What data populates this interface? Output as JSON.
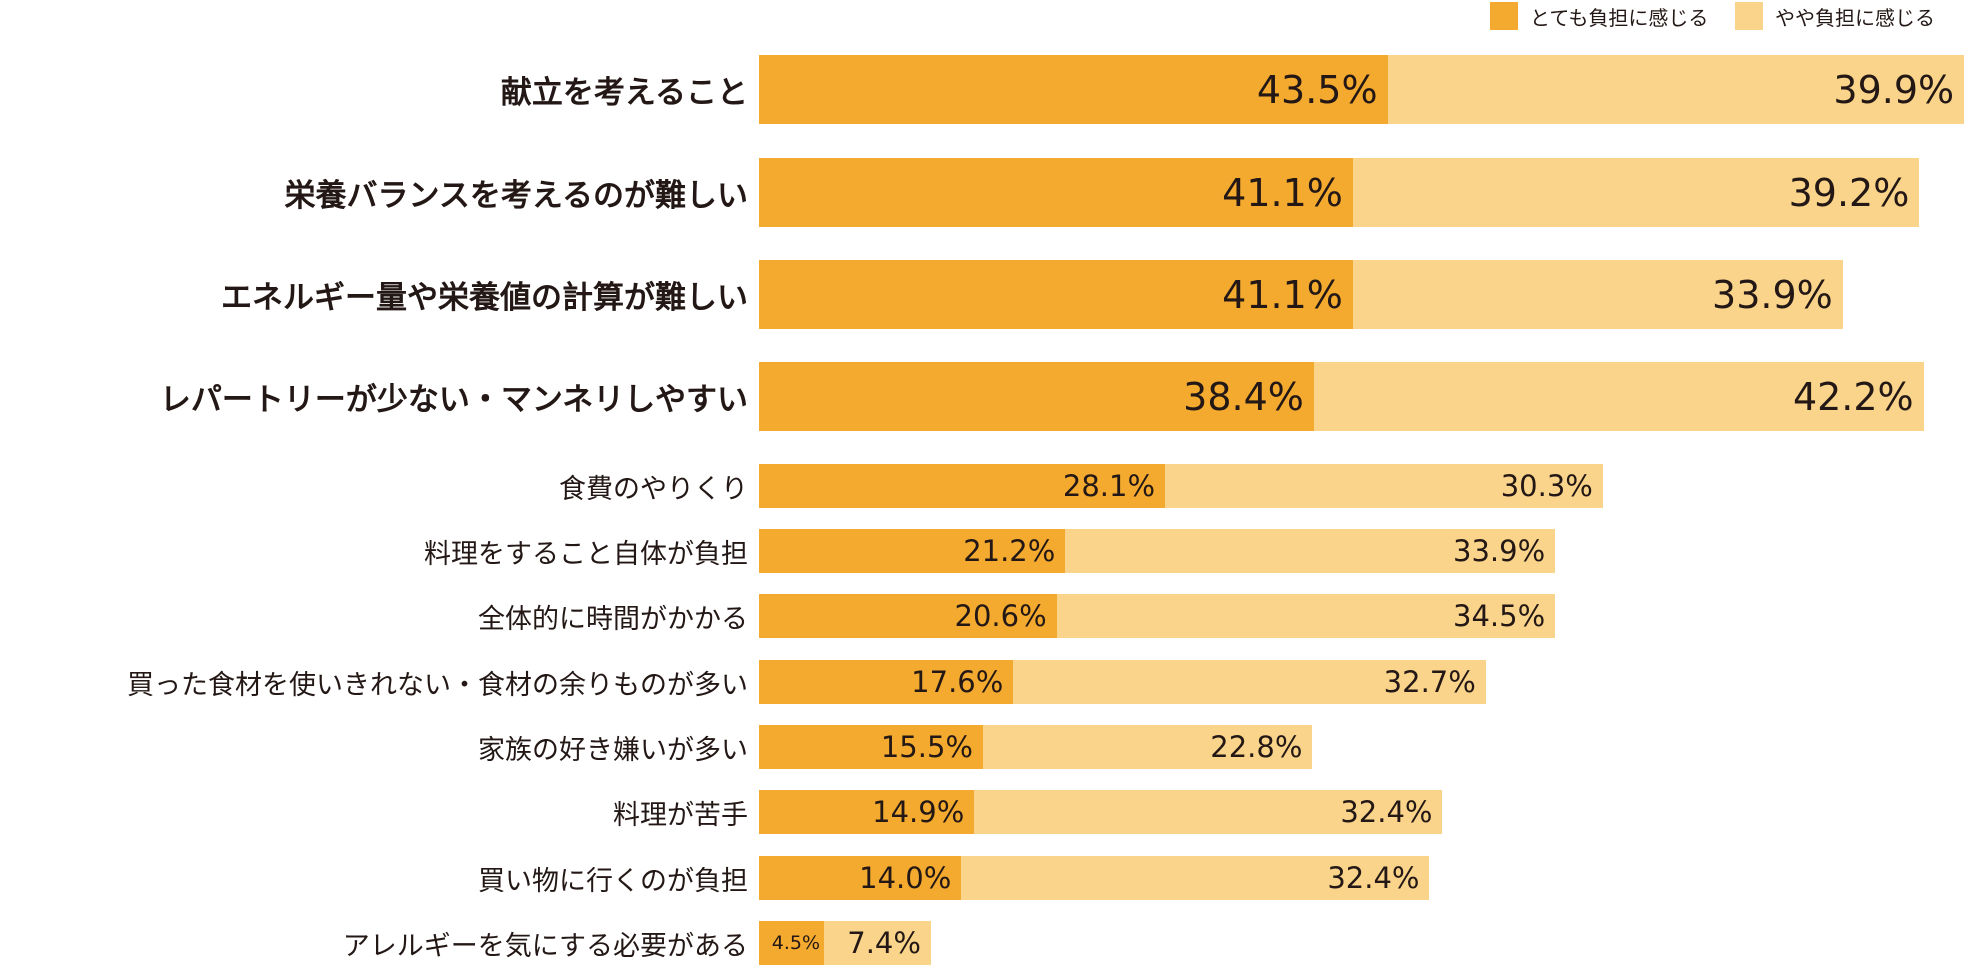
{
  "chart_data": {
    "type": "bar",
    "stacked": true,
    "orientation": "horizontal",
    "legend_position": "top-right",
    "series": [
      {
        "name": "とても負担に感じる",
        "color": "#F4AA2E",
        "values": [
          43.5,
          41.1,
          41.1,
          38.4,
          28.1,
          21.2,
          20.6,
          17.6,
          15.5,
          14.9,
          14.0,
          4.5
        ]
      },
      {
        "name": "やや負担に感じる",
        "color": "#FAD48A",
        "values": [
          39.9,
          39.2,
          33.9,
          42.2,
          30.3,
          33.9,
          34.5,
          32.7,
          22.8,
          32.4,
          32.4,
          7.4
        ]
      }
    ],
    "categories": [
      "献立を考えること",
      "栄養バランスを考えるのが難しい",
      "エネルギー量や栄養値の計算が難しい",
      "レパートリーが少ない・マンネリしやすい",
      "食費のやりくり",
      "料理をすること自体が負担",
      "全体的に時間がかかる",
      "買った食材を使いきれない・食材の余りものが多い",
      "家族の好き嫌いが多い",
      "料理が苦手",
      "買い物に行くのが負担",
      "アレルギーを気にする必要がある"
    ],
    "emphasized_count": 4,
    "value_labels": [
      [
        "43.5%",
        "39.9%"
      ],
      [
        "41.1%",
        "39.2%"
      ],
      [
        "41.1%",
        "33.9%"
      ],
      [
        "38.4%",
        "42.2%"
      ],
      [
        "28.1%",
        "30.3%"
      ],
      [
        "21.2%",
        "33.9%"
      ],
      [
        "20.6%",
        "34.5%"
      ],
      [
        "17.6%",
        "32.7%"
      ],
      [
        "15.5%",
        "22.8%"
      ],
      [
        "14.9%",
        "32.4%"
      ],
      [
        "14.0%",
        "32.4%"
      ],
      [
        "4.5%",
        "7.4%"
      ]
    ]
  }
}
